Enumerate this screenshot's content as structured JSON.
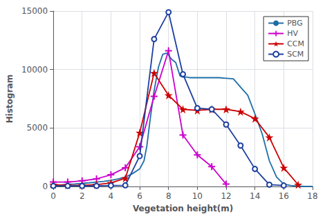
{
  "chart_data": {
    "type": "line",
    "xlabel": "Vegetation height(m)",
    "ylabel": "Histogram",
    "xlim": [
      0,
      18
    ],
    "ylim": [
      0,
      15000
    ],
    "xticks": [
      0,
      2,
      4,
      6,
      8,
      10,
      12,
      14,
      16,
      18
    ],
    "yticks": [
      0,
      5000,
      10000,
      15000
    ],
    "grid": true,
    "legend": "upper right",
    "series": [
      {
        "name": "PBG",
        "color": "#1E6EA6",
        "marker": "none",
        "x": [
          0,
          0.5,
          1,
          1.5,
          2,
          2.5,
          3,
          3.5,
          4,
          4.5,
          5,
          5.5,
          6,
          6.3,
          6.5,
          6.7,
          7.0,
          7.3,
          7.6,
          7.9,
          8.2,
          8.5,
          8.8,
          9.0,
          9.3,
          9.5,
          10.0,
          10.5,
          11.0,
          11.5,
          12.0,
          12.5,
          13.0,
          13.5,
          14.0,
          14.5,
          15.0,
          15.5,
          16.0,
          16.5,
          17.0,
          17.5,
          18.0
        ],
        "values": [
          80,
          120,
          180,
          220,
          270,
          310,
          380,
          430,
          530,
          640,
          800,
          1100,
          1500,
          2200,
          3500,
          5500,
          8200,
          10200,
          11300,
          11400,
          10900,
          10600,
          9450,
          9350,
          9350,
          9300,
          9300,
          9300,
          9300,
          9300,
          9250,
          9200,
          8500,
          7800,
          6200,
          4500,
          2200,
          800,
          200,
          80,
          30,
          10,
          0
        ]
      },
      {
        "name": "HV",
        "color": "#CC00CC",
        "marker": "plus",
        "x": [
          0,
          1,
          2,
          3,
          4,
          5,
          6,
          7,
          8,
          9,
          10,
          11,
          12
        ],
        "values": [
          380,
          380,
          480,
          650,
          1000,
          1600,
          3400,
          7700,
          11600,
          4400,
          2700,
          1700,
          200
        ]
      },
      {
        "name": "CCM",
        "color": "#CC0000",
        "marker": "star",
        "x": [
          0,
          1,
          2,
          3,
          4,
          5,
          6,
          7,
          8,
          9,
          10,
          11,
          12,
          13,
          14,
          15,
          16,
          17
        ],
        "values": [
          150,
          100,
          100,
          150,
          300,
          700,
          4600,
          9700,
          7800,
          6600,
          6500,
          6600,
          6600,
          6400,
          5800,
          4200,
          1600,
          150
        ]
      },
      {
        "name": "SCM",
        "color": "#1C3FA0",
        "marker": "open_circle",
        "x": [
          0,
          1,
          2,
          3,
          4,
          5,
          6,
          7,
          8,
          9,
          10,
          11,
          12,
          13,
          14,
          15,
          16
        ],
        "values": [
          50,
          50,
          50,
          50,
          80,
          100,
          2600,
          12600,
          14900,
          9600,
          6700,
          6600,
          5300,
          3500,
          1500,
          150,
          80
        ]
      }
    ]
  }
}
